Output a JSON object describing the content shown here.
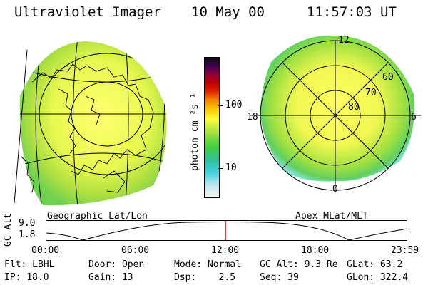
{
  "header": {
    "instrument": "Ultraviolet Imager",
    "date": "10 May 00",
    "time": "11:57:03 UT"
  },
  "left_panel": {
    "caption": "Geographic Lat/Lon"
  },
  "right_panel": {
    "caption": "Apex MLat/MLT",
    "mlt_labels": {
      "top": "12",
      "left": "18",
      "right": "6",
      "bottom": "0"
    },
    "lat_labels": [
      "60",
      "70",
      "80"
    ]
  },
  "colorbar": {
    "unit_label": "photon cm⁻²s⁻¹",
    "ticks": [
      "100",
      "10"
    ],
    "scale": "log",
    "colors": [
      "#f4f4f4",
      "#c8e8f0",
      "#40d0e0",
      "#30c0a0",
      "#40d040",
      "#a0e040",
      "#ffff40",
      "#f8c000",
      "#f08000",
      "#e02000",
      "#c00000",
      "#900040",
      "#400050",
      "#101010"
    ]
  },
  "altitude_plot": {
    "ylabel": "GC Alt",
    "yticks": [
      "9.0",
      "1.8"
    ],
    "xticks": [
      "00:00",
      "06:00",
      "12:00",
      "18:00",
      "23:59"
    ],
    "current_time_marker_color": "#e00000"
  },
  "footer": {
    "row1": [
      {
        "label": "Flt:",
        "value": "LBHL"
      },
      {
        "label": "Door:",
        "value": "Open"
      },
      {
        "label": "Mode:",
        "value": "Normal"
      },
      {
        "label": "GC Alt:",
        "value": "9.3 Re"
      },
      {
        "label": "GLat:",
        "value": "63.2"
      }
    ],
    "row2": [
      {
        "label": "IP:",
        "value": "18.0"
      },
      {
        "label": "Gain:",
        "value": "13"
      },
      {
        "label": "Dsp:",
        "value": "2.5"
      },
      {
        "label": "Seq:",
        "value": "39"
      },
      {
        "label": "GLon:",
        "value": "322.4"
      }
    ]
  }
}
